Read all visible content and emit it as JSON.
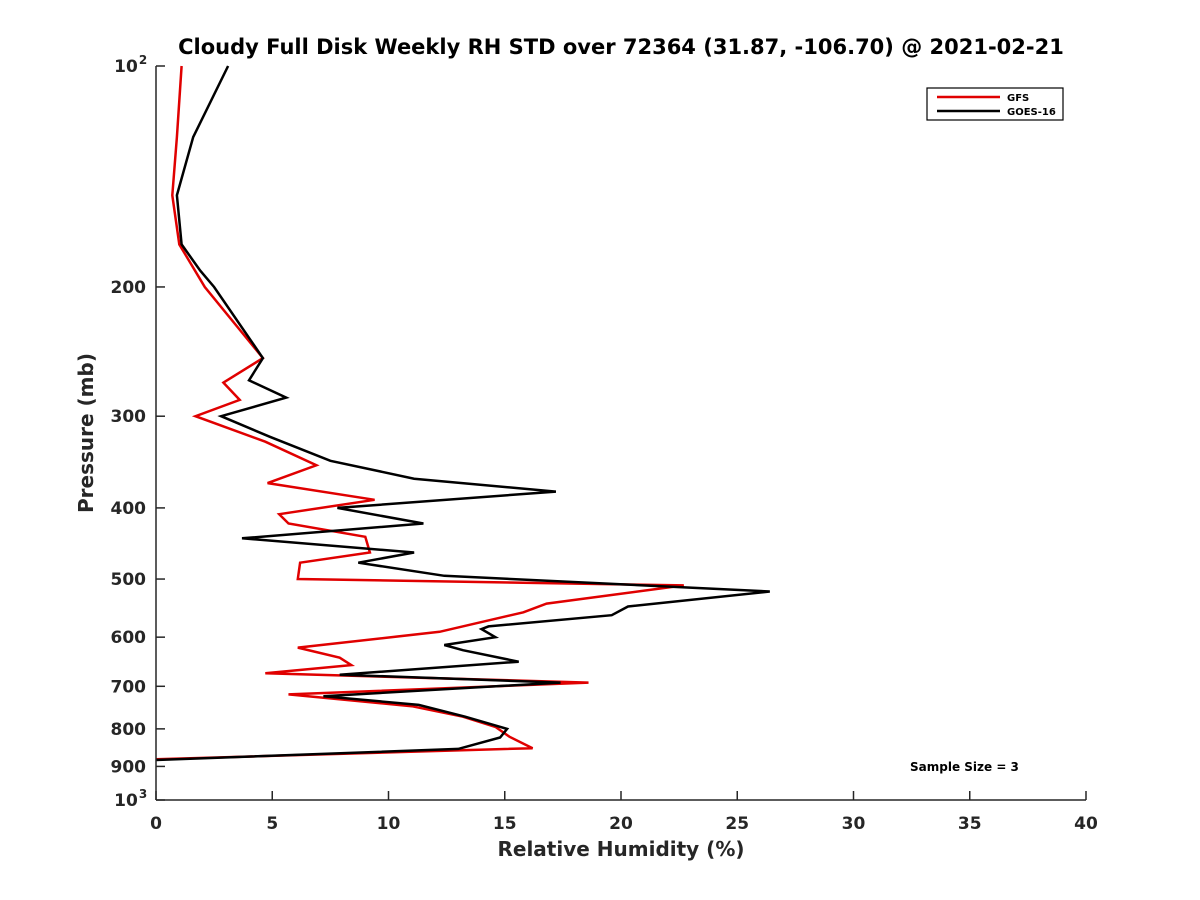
{
  "chart_data": {
    "type": "line",
    "title": "Cloudy Full Disk Weekly RH STD over 72364 (31.87, -106.70) @ 2021-02-21",
    "xlabel": "Relative Humidity (%)",
    "ylabel": "Pressure (mb)",
    "xlim": [
      0,
      40
    ],
    "ylim": [
      100,
      1000
    ],
    "y_scale": "log",
    "y_reversed": true,
    "grid": false,
    "legend_position": "top-right",
    "x_ticks": [
      0,
      5,
      10,
      15,
      20,
      25,
      30,
      35,
      40
    ],
    "y_ticks": [
      {
        "value": 100,
        "base": "10",
        "exp": "2"
      },
      {
        "value": 200,
        "label": "200"
      },
      {
        "value": 300,
        "label": "300"
      },
      {
        "value": 400,
        "label": "400"
      },
      {
        "value": 500,
        "label": "500"
      },
      {
        "value": 600,
        "label": "600"
      },
      {
        "value": 700,
        "label": "700"
      },
      {
        "value": 800,
        "label": "800"
      },
      {
        "value": 900,
        "label": "900"
      },
      {
        "value": 1000,
        "base": "10",
        "exp": "3"
      }
    ],
    "annotation": "Sample Size = 3",
    "series": [
      {
        "name": "GFS",
        "color": "#e00000",
        "points": [
          [
            1.1,
            100
          ],
          [
            0.9,
            125
          ],
          [
            0.7,
            150
          ],
          [
            1.0,
            175
          ],
          [
            2.1,
            200
          ],
          [
            4.6,
            250
          ],
          [
            2.9,
            270
          ],
          [
            3.6,
            285
          ],
          [
            1.7,
            300
          ],
          [
            4.7,
            325
          ],
          [
            6.9,
            350
          ],
          [
            4.8,
            370
          ],
          [
            9.4,
            390
          ],
          [
            5.3,
            408
          ],
          [
            5.7,
            420
          ],
          [
            9.0,
            438
          ],
          [
            9.2,
            460
          ],
          [
            6.2,
            475
          ],
          [
            6.1,
            500
          ],
          [
            22.7,
            510
          ],
          [
            16.8,
            540
          ],
          [
            15.8,
            555
          ],
          [
            12.2,
            590
          ],
          [
            6.1,
            620
          ],
          [
            7.9,
            640
          ],
          [
            8.4,
            655
          ],
          [
            4.7,
            672
          ],
          [
            18.6,
            692
          ],
          [
            5.7,
            718
          ],
          [
            11.0,
            745
          ],
          [
            13.2,
            770
          ],
          [
            14.6,
            795
          ],
          [
            15.2,
            820
          ],
          [
            16.2,
            850
          ],
          [
            0,
            880
          ]
        ]
      },
      {
        "name": "GOES-16",
        "color": "#000000",
        "points": [
          [
            3.1,
            100
          ],
          [
            1.6,
            125
          ],
          [
            0.9,
            150
          ],
          [
            1.1,
            175
          ],
          [
            1.9,
            190
          ],
          [
            2.5,
            200
          ],
          [
            4.6,
            250
          ],
          [
            4.0,
            268
          ],
          [
            5.6,
            283
          ],
          [
            2.8,
            300
          ],
          [
            4.9,
            320
          ],
          [
            7.5,
            345
          ],
          [
            11.1,
            365
          ],
          [
            17.2,
            380
          ],
          [
            7.8,
            400
          ],
          [
            11.5,
            420
          ],
          [
            3.7,
            440
          ],
          [
            11.1,
            460
          ],
          [
            8.7,
            475
          ],
          [
            12.4,
            495
          ],
          [
            26.4,
            520
          ],
          [
            20.3,
            545
          ],
          [
            19.6,
            560
          ],
          [
            14.3,
            580
          ],
          [
            14.0,
            585
          ],
          [
            14.6,
            600
          ],
          [
            12.4,
            615
          ],
          [
            13.2,
            625
          ],
          [
            15.6,
            648
          ],
          [
            7.9,
            675
          ],
          [
            17.4,
            692
          ],
          [
            7.2,
            722
          ],
          [
            11.3,
            742
          ],
          [
            13.3,
            770
          ],
          [
            15.1,
            800
          ],
          [
            14.8,
            822
          ],
          [
            13.0,
            852
          ],
          [
            0,
            882
          ]
        ]
      }
    ]
  }
}
